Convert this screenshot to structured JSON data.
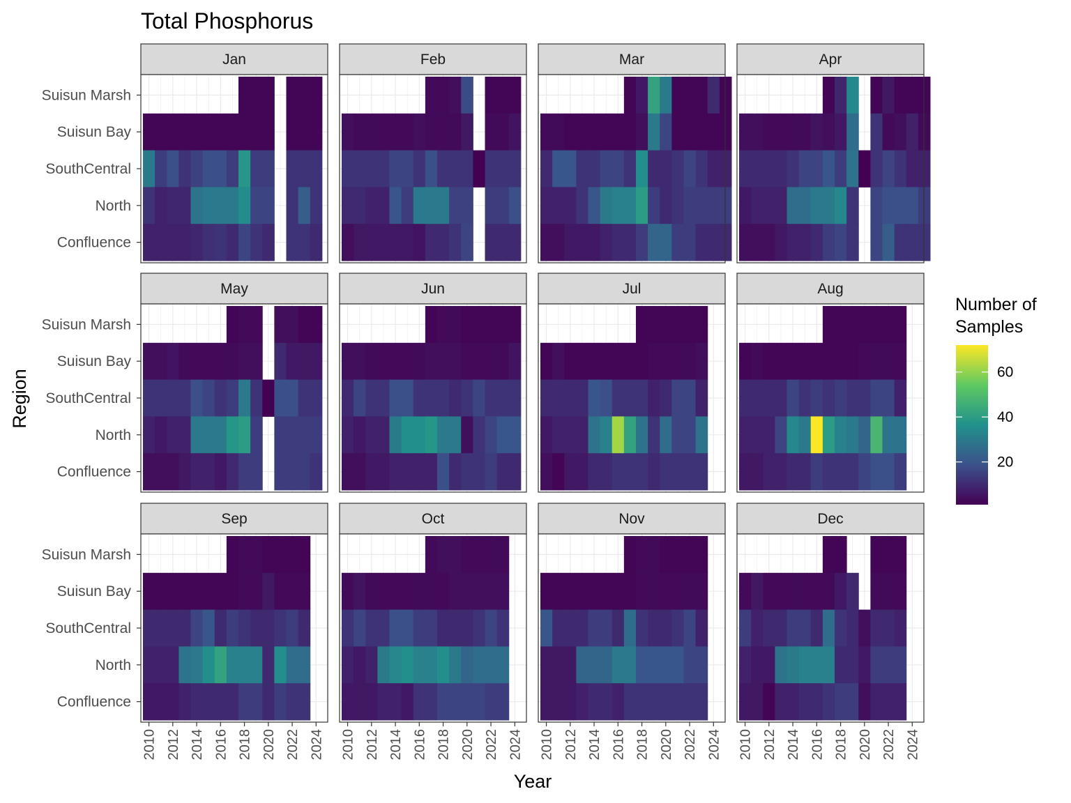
{
  "chart_data": {
    "type": "heatmap",
    "title": "Total Phosphorus",
    "xlabel": "Year",
    "ylabel": "Region",
    "x_ticks": [
      2010,
      2012,
      2014,
      2016,
      2018,
      2020,
      2022,
      2024
    ],
    "regions": [
      "Confluence",
      "North",
      "SouthCentral",
      "Suisun Bay",
      "Suisun Marsh"
    ],
    "legend": {
      "title_lines": [
        "Number of",
        "Samples"
      ],
      "ticks": [
        20,
        40,
        60
      ],
      "range": [
        1,
        72
      ],
      "colormap": "viridis",
      "placement": "right"
    },
    "start_year": 2010,
    "panels": [
      {
        "month": "Jan",
        "rows": {
          "Suisun Marsh": [
            null,
            null,
            null,
            null,
            null,
            null,
            null,
            null,
            2,
            2,
            2,
            null,
            2,
            2,
            2
          ],
          "Suisun Bay": [
            2,
            2,
            2,
            2,
            2,
            2,
            2,
            2,
            2,
            2,
            2,
            null,
            2,
            2,
            2
          ],
          "SouthCentral": [
            30,
            14,
            18,
            12,
            15,
            18,
            18,
            14,
            38,
            14,
            14,
            null,
            12,
            12,
            12
          ],
          "North": [
            12,
            8,
            9,
            9,
            28,
            30,
            30,
            30,
            35,
            16,
            16,
            null,
            12,
            22,
            12
          ],
          "Confluence": [
            8,
            8,
            8,
            8,
            9,
            11,
            12,
            10,
            16,
            12,
            10,
            null,
            12,
            12,
            10
          ]
        }
      },
      {
        "month": "Feb",
        "rows": {
          "Suisun Marsh": [
            null,
            null,
            null,
            null,
            null,
            null,
            null,
            3,
            3,
            4,
            17,
            null,
            2,
            2,
            2
          ],
          "Suisun Bay": [
            4,
            3,
            3,
            3,
            3,
            3,
            4,
            3,
            3,
            3,
            6,
            null,
            3,
            3,
            5
          ],
          "SouthCentral": [
            12,
            12,
            12,
            12,
            16,
            16,
            12,
            18,
            12,
            12,
            12,
            1,
            12,
            12,
            12
          ],
          "North": [
            10,
            10,
            8,
            8,
            20,
            14,
            30,
            30,
            30,
            15,
            15,
            null,
            14,
            14,
            18
          ],
          "Confluence": [
            4,
            6,
            6,
            6,
            6,
            6,
            5,
            10,
            10,
            12,
            16,
            null,
            10,
            10,
            10
          ]
        }
      },
      {
        "month": "Mar",
        "rows": {
          "Suisun Marsh": [
            null,
            null,
            null,
            null,
            null,
            null,
            null,
            2,
            6,
            42,
            30,
            2,
            2,
            2,
            10,
            2
          ],
          "Suisun Bay": [
            3,
            3,
            2,
            2,
            2,
            2,
            2,
            2,
            4,
            30,
            16,
            2,
            2,
            2,
            2,
            2
          ],
          "SouthCentral": [
            10,
            20,
            20,
            12,
            12,
            16,
            16,
            12,
            36,
            10,
            10,
            12,
            16,
            12,
            8,
            8
          ],
          "North": [
            8,
            8,
            8,
            12,
            20,
            30,
            32,
            32,
            40,
            14,
            10,
            12,
            14,
            14,
            14,
            14
          ],
          "Confluence": [
            4,
            4,
            6,
            6,
            6,
            8,
            10,
            10,
            14,
            24,
            24,
            14,
            14,
            10,
            10,
            10
          ]
        }
      },
      {
        "month": "Apr",
        "rows": {
          "Suisun Marsh": [
            null,
            null,
            null,
            null,
            null,
            null,
            null,
            2,
            9,
            34,
            null,
            2,
            6,
            2,
            2,
            2
          ],
          "Suisun Bay": [
            4,
            4,
            3,
            3,
            3,
            3,
            5,
            4,
            6,
            26,
            null,
            12,
            3,
            4,
            8,
            3
          ],
          "SouthCentral": [
            10,
            10,
            10,
            10,
            12,
            16,
            16,
            20,
            14,
            28,
            1,
            12,
            16,
            12,
            8,
            8
          ],
          "North": [
            6,
            8,
            8,
            8,
            26,
            26,
            30,
            30,
            34,
            12,
            null,
            16,
            18,
            18,
            18,
            14
          ],
          "Confluence": [
            4,
            4,
            4,
            6,
            8,
            8,
            10,
            14,
            16,
            12,
            null,
            16,
            22,
            12,
            12,
            12
          ]
        }
      },
      {
        "month": "May",
        "rows": {
          "Suisun Marsh": [
            null,
            null,
            null,
            null,
            null,
            null,
            null,
            2,
            3,
            3,
            null,
            4,
            4,
            2,
            2
          ],
          "Suisun Bay": [
            4,
            4,
            5,
            3,
            3,
            3,
            3,
            3,
            4,
            4,
            null,
            10,
            6,
            6,
            6
          ],
          "SouthCentral": [
            12,
            12,
            12,
            12,
            18,
            16,
            12,
            14,
            30,
            12,
            1,
            18,
            18,
            12,
            12
          ],
          "North": [
            8,
            6,
            8,
            8,
            30,
            30,
            30,
            38,
            40,
            14,
            null,
            14,
            14,
            14,
            14
          ],
          "Confluence": [
            4,
            4,
            4,
            6,
            8,
            8,
            6,
            10,
            14,
            14,
            null,
            14,
            14,
            14,
            12
          ]
        }
      },
      {
        "month": "Jun",
        "rows": {
          "Suisun Marsh": [
            null,
            null,
            null,
            null,
            null,
            null,
            null,
            2,
            3,
            3,
            2,
            2,
            2,
            2,
            2
          ],
          "Suisun Bay": [
            4,
            4,
            3,
            3,
            3,
            3,
            3,
            4,
            4,
            4,
            3,
            3,
            3,
            3,
            5
          ],
          "SouthCentral": [
            10,
            16,
            12,
            12,
            18,
            18,
            12,
            12,
            12,
            10,
            12,
            16,
            12,
            12,
            12
          ],
          "North": [
            8,
            6,
            8,
            8,
            30,
            36,
            36,
            38,
            30,
            30,
            4,
            12,
            16,
            20,
            20
          ],
          "Confluence": [
            4,
            4,
            6,
            6,
            8,
            8,
            8,
            8,
            18,
            10,
            12,
            12,
            14,
            10,
            10
          ]
        }
      },
      {
        "month": "Jul",
        "rows": {
          "Suisun Marsh": [
            null,
            null,
            null,
            null,
            null,
            null,
            null,
            null,
            2,
            2,
            2,
            2,
            2,
            2
          ],
          "Suisun Bay": [
            2,
            4,
            2,
            2,
            2,
            2,
            2,
            2,
            2,
            3,
            3,
            3,
            3,
            4
          ],
          "SouthCentral": [
            10,
            10,
            10,
            10,
            20,
            18,
            12,
            12,
            12,
            8,
            10,
            16,
            16,
            8
          ],
          "North": [
            6,
            8,
            8,
            8,
            28,
            32,
            62,
            42,
            28,
            12,
            26,
            16,
            16,
            28
          ],
          "Confluence": [
            4,
            2,
            6,
            6,
            10,
            10,
            12,
            12,
            12,
            10,
            12,
            12,
            12,
            12
          ]
        }
      },
      {
        "month": "Aug",
        "rows": {
          "Suisun Marsh": [
            null,
            null,
            null,
            null,
            null,
            null,
            null,
            2,
            2,
            2,
            2,
            2,
            2,
            2
          ],
          "Suisun Bay": [
            2,
            3,
            2,
            2,
            2,
            2,
            2,
            2,
            2,
            2,
            3,
            3,
            3,
            3
          ],
          "SouthCentral": [
            10,
            10,
            10,
            10,
            16,
            12,
            14,
            12,
            14,
            12,
            12,
            16,
            16,
            8
          ],
          "North": [
            8,
            8,
            8,
            16,
            34,
            30,
            72,
            40,
            32,
            30,
            24,
            48,
            28,
            28
          ],
          "Confluence": [
            6,
            6,
            8,
            8,
            10,
            10,
            14,
            12,
            12,
            12,
            16,
            18,
            18,
            14
          ]
        }
      },
      {
        "month": "Sep",
        "rows": {
          "Suisun Marsh": [
            null,
            null,
            null,
            null,
            null,
            null,
            null,
            2,
            3,
            3,
            2,
            2,
            2,
            2
          ],
          "Suisun Bay": [
            2,
            2,
            2,
            2,
            2,
            2,
            2,
            2,
            3,
            3,
            6,
            3,
            3,
            3
          ],
          "SouthCentral": [
            10,
            10,
            10,
            10,
            16,
            20,
            10,
            14,
            12,
            10,
            10,
            12,
            14,
            10
          ],
          "North": [
            8,
            8,
            8,
            28,
            30,
            36,
            42,
            32,
            32,
            32,
            10,
            36,
            26,
            26
          ],
          "Confluence": [
            6,
            6,
            6,
            8,
            10,
            10,
            10,
            10,
            14,
            14,
            10,
            14,
            12,
            12
          ]
        }
      },
      {
        "month": "Oct",
        "rows": {
          "Suisun Marsh": [
            null,
            null,
            null,
            null,
            null,
            null,
            null,
            3,
            4,
            4,
            3,
            3,
            3,
            3
          ],
          "Suisun Bay": [
            3,
            5,
            3,
            3,
            3,
            3,
            3,
            3,
            3,
            4,
            4,
            4,
            4,
            4
          ],
          "SouthCentral": [
            12,
            16,
            12,
            12,
            18,
            18,
            14,
            14,
            10,
            10,
            10,
            12,
            16,
            12
          ],
          "North": [
            8,
            6,
            8,
            30,
            34,
            36,
            32,
            32,
            36,
            30,
            24,
            26,
            26,
            26
          ],
          "Confluence": [
            6,
            6,
            6,
            8,
            8,
            6,
            12,
            12,
            16,
            16,
            16,
            16,
            14,
            14
          ]
        }
      },
      {
        "month": "Nov",
        "rows": {
          "Suisun Marsh": [
            null,
            null,
            null,
            null,
            null,
            null,
            null,
            2,
            3,
            3,
            2,
            2,
            2,
            2
          ],
          "Suisun Bay": [
            2,
            2,
            2,
            2,
            2,
            2,
            2,
            2,
            3,
            3,
            3,
            3,
            3,
            3
          ],
          "SouthCentral": [
            20,
            10,
            10,
            10,
            14,
            14,
            10,
            26,
            12,
            10,
            10,
            12,
            16,
            8
          ],
          "North": [
            6,
            6,
            6,
            24,
            24,
            24,
            30,
            30,
            20,
            20,
            20,
            20,
            16,
            16
          ],
          "Confluence": [
            6,
            6,
            6,
            8,
            10,
            10,
            8,
            12,
            12,
            12,
            12,
            12,
            12,
            12
          ]
        }
      },
      {
        "month": "Dec",
        "rows": {
          "Suisun Marsh": [
            null,
            null,
            null,
            null,
            null,
            null,
            null,
            2,
            2,
            null,
            null,
            2,
            2,
            2
          ],
          "Suisun Bay": [
            3,
            6,
            3,
            3,
            3,
            3,
            3,
            3,
            6,
            10,
            null,
            3,
            3,
            3
          ],
          "SouthCentral": [
            14,
            8,
            10,
            10,
            14,
            14,
            10,
            26,
            12,
            10,
            4,
            10,
            10,
            8
          ],
          "North": [
            8,
            6,
            6,
            28,
            30,
            32,
            32,
            32,
            10,
            10,
            6,
            14,
            14,
            14
          ],
          "Confluence": [
            6,
            6,
            2,
            8,
            8,
            10,
            10,
            12,
            14,
            14,
            4,
            8,
            8,
            8
          ]
        }
      }
    ]
  }
}
